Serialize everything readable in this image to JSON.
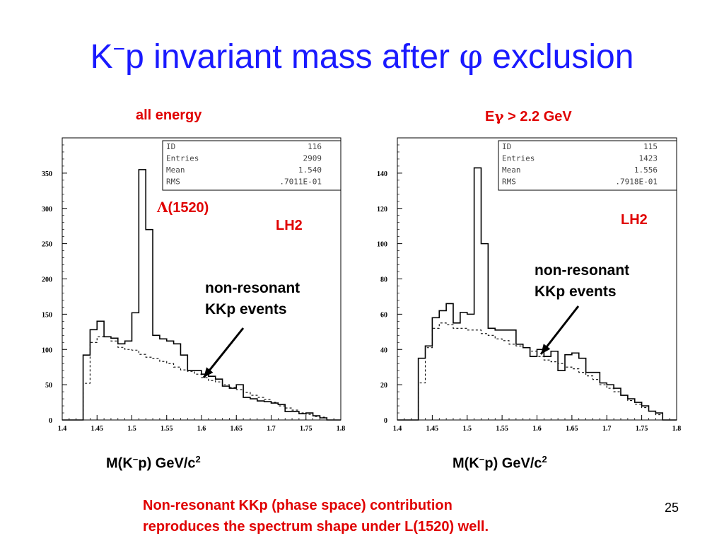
{
  "slide": {
    "title_prefix": "K",
    "title_sup": "−",
    "title_main": "p invariant mass after ",
    "title_phi": "φ",
    "title_suffix": " exclusion",
    "note_line1": "Non-resonant KKp (phase space) contribution",
    "note_line2": "reproduces the spectrum shape under L(1520) well.",
    "page_number": "25",
    "xlabel_prefix": "M(K",
    "xlabel_sup": "−",
    "xlabel_mid": "p)  GeV/c",
    "xlabel_sup2": "2"
  },
  "colors": {
    "title": "#1a1aff",
    "annotation_red": "#e00000",
    "histogram": "#000000"
  },
  "chart_data": [
    {
      "type": "histogram",
      "panel_title": "all energy",
      "x_range": [
        1.4,
        1.8
      ],
      "y_range": [
        0,
        400
      ],
      "x_ticks": [
        "1.4",
        "1.45",
        "1.5",
        "1.55",
        "1.6",
        "1.65",
        "1.7",
        "1.75",
        "1.8"
      ],
      "y_ticks": [
        "0",
        "50",
        "100",
        "150",
        "200",
        "250",
        "300",
        "350"
      ],
      "bin_edges": [
        1.4,
        1.41,
        1.42,
        1.43,
        1.44,
        1.45,
        1.46,
        1.47,
        1.48,
        1.49,
        1.5,
        1.51,
        1.52,
        1.53,
        1.54,
        1.55,
        1.56,
        1.57,
        1.58,
        1.59,
        1.6,
        1.61,
        1.62,
        1.63,
        1.64,
        1.65,
        1.66,
        1.67,
        1.68,
        1.69,
        1.7,
        1.71,
        1.72,
        1.73,
        1.74,
        1.75,
        1.76,
        1.77,
        1.78,
        1.79,
        1.8
      ],
      "series": [
        {
          "style": "solid",
          "values": [
            0,
            0,
            0,
            92,
            128,
            140,
            118,
            116,
            108,
            112,
            152,
            355,
            270,
            120,
            115,
            112,
            108,
            92,
            70,
            70,
            65,
            62,
            58,
            48,
            45,
            50,
            32,
            30,
            27,
            26,
            24,
            22,
            12,
            12,
            9,
            10,
            6,
            3,
            0,
            0
          ]
        },
        {
          "style": "dashed",
          "values": [
            0,
            0,
            0,
            52,
            110,
            118,
            118,
            112,
            103,
            100,
            99,
            93,
            89,
            87,
            83,
            80,
            75,
            71,
            69,
            65,
            60,
            56,
            54,
            50,
            46,
            43,
            39,
            35,
            32,
            29,
            25,
            20,
            17,
            14,
            10,
            8,
            5,
            4,
            0,
            0
          ]
        }
      ],
      "stats": [
        {
          "label": "ID",
          "value": "116"
        },
        {
          "label": "Entries",
          "value": "2909"
        },
        {
          "label": "Mean",
          "value": "1.540"
        },
        {
          "label": "RMS",
          "value": ".7011E-01"
        }
      ],
      "annotations": {
        "lambda_symbol": "Λ",
        "lambda_label": "(1520)",
        "target": "LH2",
        "nonres_line1": "non-resonant",
        "nonres_line2": "KKp events"
      }
    },
    {
      "type": "histogram",
      "panel_title_E": "E",
      "panel_title_gamma": "γ",
      "panel_title_rest": " > 2.2 GeV",
      "x_range": [
        1.4,
        1.8
      ],
      "y_range": [
        0,
        160
      ],
      "x_ticks": [
        "1.4",
        "1.45",
        "1.5",
        "1.55",
        "1.6",
        "1.65",
        "1.7",
        "1.75",
        "1.8"
      ],
      "y_ticks": [
        "0",
        "20",
        "40",
        "60",
        "80",
        "100",
        "120",
        "140"
      ],
      "bin_edges": [
        1.4,
        1.41,
        1.42,
        1.43,
        1.44,
        1.45,
        1.46,
        1.47,
        1.48,
        1.49,
        1.5,
        1.51,
        1.52,
        1.53,
        1.54,
        1.55,
        1.56,
        1.57,
        1.58,
        1.59,
        1.6,
        1.61,
        1.62,
        1.63,
        1.64,
        1.65,
        1.66,
        1.67,
        1.68,
        1.69,
        1.7,
        1.71,
        1.72,
        1.73,
        1.74,
        1.75,
        1.76,
        1.77,
        1.78,
        1.79,
        1.8
      ],
      "series": [
        {
          "style": "solid",
          "values": [
            0,
            0,
            0,
            35,
            42,
            58,
            62,
            66,
            55,
            61,
            60,
            143,
            100,
            52,
            51,
            51,
            51,
            43,
            41,
            36,
            40,
            36,
            39,
            28,
            37,
            38,
            35,
            27,
            27,
            21,
            20,
            18,
            14,
            12,
            10,
            8,
            5,
            4,
            0,
            0
          ]
        },
        {
          "style": "dashed",
          "values": [
            0,
            0,
            0,
            21,
            41,
            52,
            55,
            54,
            52,
            52,
            51,
            51,
            49,
            48,
            46,
            45,
            43,
            42,
            41,
            39,
            36,
            34,
            33,
            32,
            30,
            29,
            27,
            25,
            23,
            20,
            18,
            16,
            14,
            11,
            9,
            7,
            5,
            3,
            0,
            0
          ]
        }
      ],
      "stats": [
        {
          "label": "ID",
          "value": "115"
        },
        {
          "label": "Entries",
          "value": "1423"
        },
        {
          "label": "Mean",
          "value": "1.556"
        },
        {
          "label": "RMS",
          "value": ".7918E-01"
        }
      ],
      "annotations": {
        "target": "LH2",
        "nonres_line1": "non-resonant",
        "nonres_line2": "KKp events"
      }
    }
  ]
}
